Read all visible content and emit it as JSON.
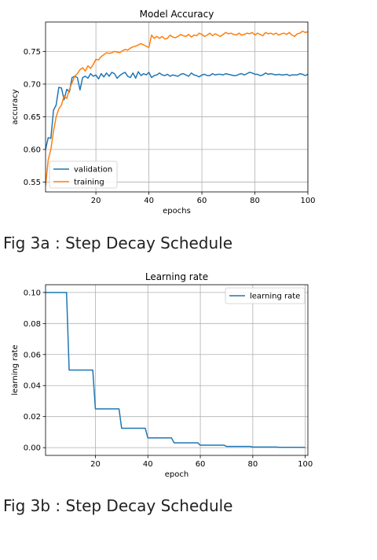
{
  "figures": [
    {
      "caption": "Fig 3a : Step Decay Schedule"
    },
    {
      "caption": "Fig 3b : Step Decay Schedule"
    }
  ],
  "chart_data": [
    {
      "type": "line",
      "title": "Model Accuracy",
      "xlabel": "epochs",
      "ylabel": "accuracy",
      "xlim": [
        1,
        100
      ],
      "ylim": [
        0.535,
        0.795
      ],
      "xticks": [
        20,
        40,
        60,
        80,
        100
      ],
      "yticks": [
        0.55,
        0.6,
        0.65,
        0.7,
        0.75
      ],
      "ytick_labels": [
        "0.55",
        "0.60",
        "0.65",
        "0.70",
        "0.75"
      ],
      "grid": true,
      "legend_position": "lower-left",
      "series": [
        {
          "name": "validation",
          "color": "#1f77b4",
          "x": [
            1,
            2,
            3,
            4,
            5,
            6,
            7,
            8,
            9,
            10,
            11,
            12,
            13,
            14,
            15,
            16,
            17,
            18,
            19,
            20,
            21,
            22,
            23,
            24,
            25,
            26,
            27,
            28,
            29,
            30,
            31,
            32,
            33,
            34,
            35,
            36,
            37,
            38,
            39,
            40,
            41,
            42,
            43,
            44,
            45,
            46,
            47,
            48,
            49,
            50,
            51,
            52,
            53,
            54,
            55,
            56,
            57,
            58,
            59,
            60,
            61,
            62,
            63,
            64,
            65,
            66,
            67,
            68,
            69,
            70,
            71,
            72,
            73,
            74,
            75,
            76,
            77,
            78,
            79,
            80,
            81,
            82,
            83,
            84,
            85,
            86,
            87,
            88,
            89,
            90,
            91,
            92,
            93,
            94,
            95,
            96,
            97,
            98,
            99,
            100
          ],
          "y": [
            0.6,
            0.618,
            0.617,
            0.66,
            0.668,
            0.695,
            0.694,
            0.676,
            0.692,
            0.688,
            0.71,
            0.712,
            0.71,
            0.691,
            0.71,
            0.712,
            0.709,
            0.716,
            0.712,
            0.714,
            0.708,
            0.716,
            0.711,
            0.717,
            0.712,
            0.718,
            0.716,
            0.709,
            0.713,
            0.716,
            0.718,
            0.712,
            0.71,
            0.717,
            0.709,
            0.719,
            0.713,
            0.716,
            0.714,
            0.718,
            0.71,
            0.713,
            0.714,
            0.717,
            0.714,
            0.713,
            0.715,
            0.712,
            0.714,
            0.713,
            0.712,
            0.715,
            0.716,
            0.714,
            0.712,
            0.717,
            0.714,
            0.713,
            0.711,
            0.714,
            0.715,
            0.713,
            0.713,
            0.716,
            0.714,
            0.715,
            0.715,
            0.714,
            0.716,
            0.715,
            0.714,
            0.713,
            0.713,
            0.715,
            0.716,
            0.714,
            0.716,
            0.718,
            0.717,
            0.715,
            0.715,
            0.713,
            0.714,
            0.717,
            0.715,
            0.716,
            0.715,
            0.714,
            0.715,
            0.714,
            0.714,
            0.715,
            0.713,
            0.714,
            0.714,
            0.714,
            0.716,
            0.715,
            0.713,
            0.715
          ]
        },
        {
          "name": "training",
          "color": "#ff7f0e",
          "x": [
            1,
            2,
            3,
            4,
            5,
            6,
            7,
            8,
            9,
            10,
            11,
            12,
            13,
            14,
            15,
            16,
            17,
            18,
            19,
            20,
            21,
            22,
            23,
            24,
            25,
            26,
            27,
            28,
            29,
            30,
            31,
            32,
            33,
            34,
            35,
            36,
            37,
            38,
            39,
            40,
            41,
            42,
            43,
            44,
            45,
            46,
            47,
            48,
            49,
            50,
            51,
            52,
            53,
            54,
            55,
            56,
            57,
            58,
            59,
            60,
            61,
            62,
            63,
            64,
            65,
            66,
            67,
            68,
            69,
            70,
            71,
            72,
            73,
            74,
            75,
            76,
            77,
            78,
            79,
            80,
            81,
            82,
            83,
            84,
            85,
            86,
            87,
            88,
            89,
            90,
            91,
            92,
            93,
            94,
            95,
            96,
            97,
            98,
            99,
            100
          ],
          "y": [
            0.545,
            0.584,
            0.6,
            0.628,
            0.65,
            0.662,
            0.668,
            0.682,
            0.678,
            0.692,
            0.702,
            0.712,
            0.716,
            0.722,
            0.725,
            0.72,
            0.728,
            0.724,
            0.73,
            0.738,
            0.737,
            0.742,
            0.745,
            0.748,
            0.747,
            0.748,
            0.75,
            0.749,
            0.748,
            0.751,
            0.753,
            0.752,
            0.755,
            0.757,
            0.758,
            0.76,
            0.762,
            0.76,
            0.758,
            0.756,
            0.775,
            0.77,
            0.773,
            0.77,
            0.773,
            0.769,
            0.77,
            0.775,
            0.772,
            0.771,
            0.773,
            0.776,
            0.774,
            0.773,
            0.776,
            0.772,
            0.775,
            0.774,
            0.778,
            0.776,
            0.773,
            0.775,
            0.778,
            0.774,
            0.777,
            0.775,
            0.773,
            0.776,
            0.779,
            0.777,
            0.778,
            0.776,
            0.775,
            0.778,
            0.775,
            0.776,
            0.778,
            0.777,
            0.779,
            0.775,
            0.778,
            0.776,
            0.774,
            0.779,
            0.777,
            0.778,
            0.776,
            0.778,
            0.775,
            0.777,
            0.778,
            0.776,
            0.779,
            0.775,
            0.773,
            0.777,
            0.778,
            0.781,
            0.779,
            0.78
          ]
        }
      ]
    },
    {
      "type": "line",
      "title": "Learning rate",
      "xlabel": "epoch",
      "ylabel": "learning rate",
      "xlim": [
        1,
        101
      ],
      "ylim": [
        -0.005,
        0.105
      ],
      "xticks": [
        20,
        40,
        60,
        80,
        100
      ],
      "yticks": [
        0.0,
        0.02,
        0.04,
        0.06,
        0.08,
        0.1
      ],
      "ytick_labels": [
        "0.00",
        "0.02",
        "0.04",
        "0.06",
        "0.08",
        "0.10"
      ],
      "grid": true,
      "legend_position": "top-right",
      "series": [
        {
          "name": "learning rate",
          "color": "#1f77b4",
          "x": [
            1,
            9,
            10,
            19,
            20,
            29,
            30,
            39,
            40,
            49,
            50,
            59,
            60,
            69,
            70,
            79,
            80,
            89,
            90,
            99,
            100
          ],
          "y": [
            0.1,
            0.1,
            0.05,
            0.05,
            0.025,
            0.025,
            0.0125,
            0.0125,
            0.00625,
            0.00625,
            0.003125,
            0.003125,
            0.0015625,
            0.0015625,
            0.00078125,
            0.00078125,
            0.000390625,
            0.000390625,
            0.0001953125,
            0.0001953125,
            9.76563e-05
          ]
        }
      ]
    }
  ]
}
